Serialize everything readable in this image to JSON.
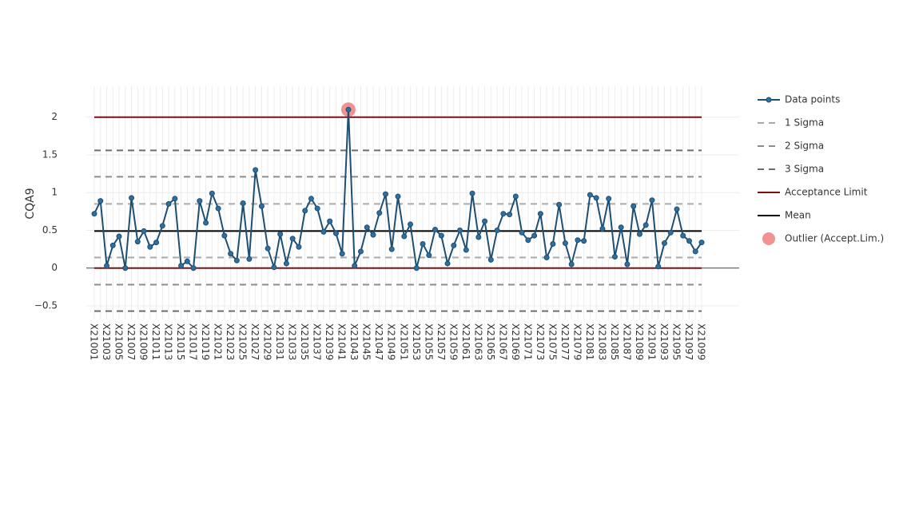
{
  "chart_data": {
    "type": "line",
    "y_label": "CQA9",
    "ylim": [
      -0.68,
      2.41
    ],
    "yticks": [
      {
        "value": -0.5,
        "label": "−0.5"
      },
      0,
      0.5,
      1,
      1.5,
      2
    ],
    "grid": true,
    "legend": "right",
    "categories": [
      "X21001",
      null,
      "X21003",
      null,
      "X21005",
      null,
      "X21007",
      null,
      "X21009",
      null,
      "X21011",
      null,
      "X21013",
      null,
      "X21015",
      null,
      "X21017",
      null,
      "X21019",
      null,
      "X21021",
      null,
      "X21023",
      null,
      "X21025",
      null,
      "X21027",
      null,
      "X21029",
      null,
      "X21031",
      null,
      "X21033",
      null,
      "X21035",
      null,
      "X21037",
      null,
      "X21039",
      null,
      "X21041",
      null,
      "X21043",
      null,
      "X21045",
      null,
      "X21047",
      null,
      "X21049",
      null,
      "X21051",
      null,
      "X21053",
      null,
      "X21055",
      null,
      "X21057",
      null,
      "X21059",
      null,
      "X21061",
      null,
      "X21063",
      null,
      "X21065",
      null,
      "X21067",
      null,
      "X21069",
      null,
      "X21071",
      null,
      "X21073",
      null,
      "X21075",
      null,
      "X21077",
      null,
      "X21079",
      null,
      "X21081",
      null,
      "X21083",
      null,
      "X21085",
      null,
      "X21087",
      null,
      "X21089",
      null,
      "X21091",
      null,
      "X21093",
      null,
      "X21095",
      null,
      "X21097",
      null,
      "X21099"
    ],
    "series": [
      {
        "name": "Data points",
        "color": "#1d4f73",
        "marker_color": "#2f6fa0",
        "mode": "lines+markers",
        "values": [
          0.72,
          0.89,
          0.03,
          0.3,
          0.42,
          0.0,
          0.93,
          0.35,
          0.49,
          0.28,
          0.34,
          0.56,
          0.85,
          0.92,
          0.03,
          0.09,
          0.0,
          0.89,
          0.6,
          0.99,
          0.79,
          0.43,
          0.19,
          0.1,
          0.86,
          0.12,
          1.3,
          0.82,
          0.26,
          0.01,
          0.45,
          0.06,
          0.39,
          0.28,
          0.76,
          0.92,
          0.79,
          0.48,
          0.62,
          0.46,
          0.19,
          2.1,
          0.03,
          0.22,
          0.54,
          0.44,
          0.73,
          0.98,
          0.25,
          0.95,
          0.42,
          0.58,
          0.0,
          0.32,
          0.17,
          0.51,
          0.43,
          0.06,
          0.3,
          0.5,
          0.24,
          0.99,
          0.41,
          0.62,
          0.11,
          0.5,
          0.72,
          0.71,
          0.95,
          0.47,
          0.37,
          0.43,
          0.72,
          0.14,
          0.32,
          0.84,
          0.33,
          0.05,
          0.37,
          0.36,
          0.97,
          0.93,
          0.52,
          0.92,
          0.15,
          0.54,
          0.05,
          0.82,
          0.45,
          0.57,
          0.9,
          0.02,
          0.33,
          0.47,
          0.78,
          0.43,
          0.36,
          0.22,
          0.34
        ]
      },
      {
        "name": "Outlier (Accept.Lim.)",
        "color": "#f08080",
        "mode": "markers",
        "values": [
          null,
          null,
          null,
          null,
          null,
          null,
          null,
          null,
          null,
          null,
          null,
          null,
          null,
          null,
          null,
          null,
          null,
          null,
          null,
          null,
          null,
          null,
          null,
          null,
          null,
          null,
          null,
          null,
          null,
          null,
          null,
          null,
          null,
          null,
          null,
          null,
          null,
          null,
          null,
          null,
          null,
          2.1,
          null,
          null,
          null,
          null,
          null,
          null,
          null,
          null,
          null,
          null,
          null,
          null,
          null,
          null,
          null,
          null,
          null,
          null,
          null,
          null,
          null,
          null,
          null,
          null,
          null,
          null,
          null,
          null,
          null,
          null,
          null,
          null,
          null,
          null,
          null,
          null,
          null,
          null,
          null,
          null,
          null,
          null,
          null,
          null,
          null,
          null,
          null,
          null,
          null,
          null,
          null,
          null,
          null,
          null,
          null,
          null,
          null
        ]
      }
    ],
    "reference_lines": [
      {
        "name": "1 Sigma",
        "color": "#aaaaaa",
        "dashed": true,
        "values": [
          0.85,
          0.14
        ]
      },
      {
        "name": "2 Sigma",
        "color": "#8c8c8c",
        "dashed": true,
        "values": [
          1.21,
          -0.22
        ]
      },
      {
        "name": "3 Sigma",
        "color": "#6e6e6e",
        "dashed": true,
        "values": [
          1.56,
          -0.57
        ]
      },
      {
        "name": "Acceptance Limit",
        "color": "#7b1111",
        "dashed": false,
        "values": [
          0,
          2
        ]
      },
      {
        "name": "Mean",
        "color": "#000000",
        "dashed": false,
        "values": [
          0.49
        ]
      }
    ]
  }
}
